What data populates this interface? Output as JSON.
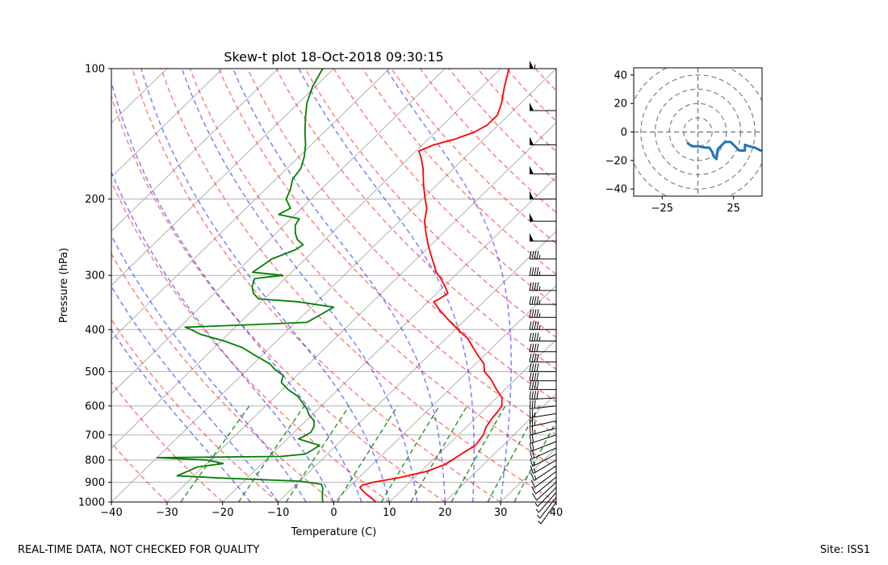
{
  "chart_data": [
    {
      "type": "line",
      "title": "Skew-t plot 18-Oct-2018 09:30:15",
      "xlabel": "Temperature (C)",
      "ylabel": "Pressure (hPa)",
      "xlim": [
        -40,
        40
      ],
      "ylim": [
        1000,
        100
      ],
      "y_scale": "log",
      "grid": true,
      "x_ticks": [
        -40,
        -30,
        -20,
        -10,
        0,
        10,
        20,
        30,
        40
      ],
      "y_ticks": [
        100,
        200,
        300,
        400,
        500,
        600,
        700,
        800,
        900,
        1000
      ],
      "series": [
        {
          "color": "#ff0000",
          "points": [
            [
              1000,
              7.5
            ],
            [
              985,
              6.5
            ],
            [
              960,
              4.5
            ],
            [
              940,
              3.0
            ],
            [
              925,
              2.0
            ],
            [
              915,
              2.0
            ],
            [
              900,
              3.5
            ],
            [
              880,
              7.0
            ],
            [
              850,
              11.0
            ],
            [
              820,
              13.0
            ],
            [
              800,
              13.5
            ],
            [
              770,
              14.2
            ],
            [
              740,
              15.0
            ],
            [
              700,
              14.5
            ],
            [
              670,
              13.5
            ],
            [
              640,
              13.0
            ],
            [
              620,
              12.8
            ],
            [
              600,
              12.5
            ],
            [
              575,
              11.0
            ],
            [
              550,
              8.5
            ],
            [
              520,
              5.5
            ],
            [
              500,
              3.0
            ],
            [
              480,
              1.5
            ],
            [
              460,
              -1.0
            ],
            [
              440,
              -3.5
            ],
            [
              420,
              -6.0
            ],
            [
              400,
              -9.5
            ],
            [
              380,
              -13.0
            ],
            [
              360,
              -16.5
            ],
            [
              345,
              -19.0
            ],
            [
              340,
              -18.5
            ],
            [
              330,
              -18.0
            ],
            [
              320,
              -19.5
            ],
            [
              305,
              -22.0
            ],
            [
              295,
              -24.0
            ],
            [
              285,
              -25.5
            ],
            [
              270,
              -28.0
            ],
            [
              255,
              -30.5
            ],
            [
              240,
              -33.0
            ],
            [
              225,
              -35.5
            ],
            [
              210,
              -37.5
            ],
            [
              200,
              -39.5
            ],
            [
              185,
              -42.5
            ],
            [
              170,
              -45.5
            ],
            [
              160,
              -48.0
            ],
            [
              155,
              -49.5
            ],
            [
              150,
              -48.0
            ],
            [
              145,
              -45.0
            ],
            [
              140,
              -43.0
            ],
            [
              135,
              -42.0
            ],
            [
              128,
              -42.0
            ],
            [
              120,
              -43.5
            ],
            [
              110,
              -46.0
            ],
            [
              100,
              -48.5
            ]
          ]
        },
        {
          "color": "#008000",
          "points": [
            [
              1000,
              -2.0
            ],
            [
              960,
              -3.5
            ],
            [
              930,
              -4.5
            ],
            [
              910,
              -5.5
            ],
            [
              895,
              -10.0
            ],
            [
              880,
              -25.0
            ],
            [
              870,
              -33.0
            ],
            [
              850,
              -32.0
            ],
            [
              830,
              -31.0
            ],
            [
              815,
              -27.0
            ],
            [
              800,
              -30.5
            ],
            [
              790,
              -40.0
            ],
            [
              785,
              -18.0
            ],
            [
              775,
              -14.0
            ],
            [
              760,
              -13.5
            ],
            [
              740,
              -13.0
            ],
            [
              730,
              -15.0
            ],
            [
              715,
              -18.0
            ],
            [
              705,
              -17.5
            ],
            [
              690,
              -17.0
            ],
            [
              670,
              -17.5
            ],
            [
              650,
              -18.5
            ],
            [
              630,
              -20.5
            ],
            [
              610,
              -22.0
            ],
            [
              590,
              -24.0
            ],
            [
              570,
              -26.0
            ],
            [
              550,
              -29.0
            ],
            [
              530,
              -31.5
            ],
            [
              510,
              -32.5
            ],
            [
              495,
              -35.0
            ],
            [
              480,
              -37.0
            ],
            [
              460,
              -41.0
            ],
            [
              440,
              -45.0
            ],
            [
              425,
              -49.5
            ],
            [
              410,
              -55.0
            ],
            [
              400,
              -57.5
            ],
            [
              395,
              -59.0
            ],
            [
              390,
              -48.0
            ],
            [
              385,
              -38.0
            ],
            [
              370,
              -37.0
            ],
            [
              355,
              -36.0
            ],
            [
              345,
              -43.5
            ],
            [
              340,
              -51.0
            ],
            [
              330,
              -53.0
            ],
            [
              318,
              -54.5
            ],
            [
              305,
              -55.5
            ],
            [
              300,
              -51.0
            ],
            [
              295,
              -57.0
            ],
            [
              285,
              -56.5
            ],
            [
              275,
              -56.0
            ],
            [
              262,
              -53.5
            ],
            [
              255,
              -53.0
            ],
            [
              248,
              -55.0
            ],
            [
              240,
              -56.5
            ],
            [
              230,
              -58.0
            ],
            [
              222,
              -58.5
            ],
            [
              217,
              -63.0
            ],
            [
              210,
              -62.0
            ],
            [
              200,
              -64.5
            ],
            [
              190,
              -65.5
            ],
            [
              180,
              -67.0
            ],
            [
              170,
              -67.5
            ],
            [
              160,
              -69.0
            ],
            [
              150,
              -71.0
            ],
            [
              140,
              -73.5
            ],
            [
              130,
              -76.0
            ],
            [
              120,
              -78.5
            ],
            [
              110,
              -80.5
            ],
            [
              100,
              -82.0
            ]
          ]
        }
      ]
    },
    {
      "type": "line",
      "xlim": [
        -45,
        45
      ],
      "ylim": [
        -45,
        45
      ],
      "x_ticks": [
        -25,
        25
      ],
      "y_ticks": [
        40,
        20,
        0,
        -20,
        -40
      ],
      "series": [
        {
          "color": "#1f77b4",
          "points": [
            [
              -7,
              -8
            ],
            [
              -4,
              -10
            ],
            [
              0,
              -10
            ],
            [
              5,
              -11
            ],
            [
              8,
              -11
            ],
            [
              10,
              -14
            ],
            [
              11,
              -17
            ],
            [
              13,
              -19
            ],
            [
              14,
              -12
            ],
            [
              17,
              -9
            ],
            [
              19,
              -7
            ],
            [
              23,
              -7
            ],
            [
              25,
              -9
            ],
            [
              27,
              -11
            ],
            [
              29,
              -13
            ],
            [
              33,
              -13
            ],
            [
              33,
              -9
            ],
            [
              36,
              -10
            ],
            [
              40,
              -11
            ],
            [
              44,
              -13
            ]
          ]
        }
      ]
    }
  ],
  "footer": {
    "left": "REAL-TIME DATA, NOT CHECKED FOR QUALITY",
    "right": "Site: ISS1"
  }
}
